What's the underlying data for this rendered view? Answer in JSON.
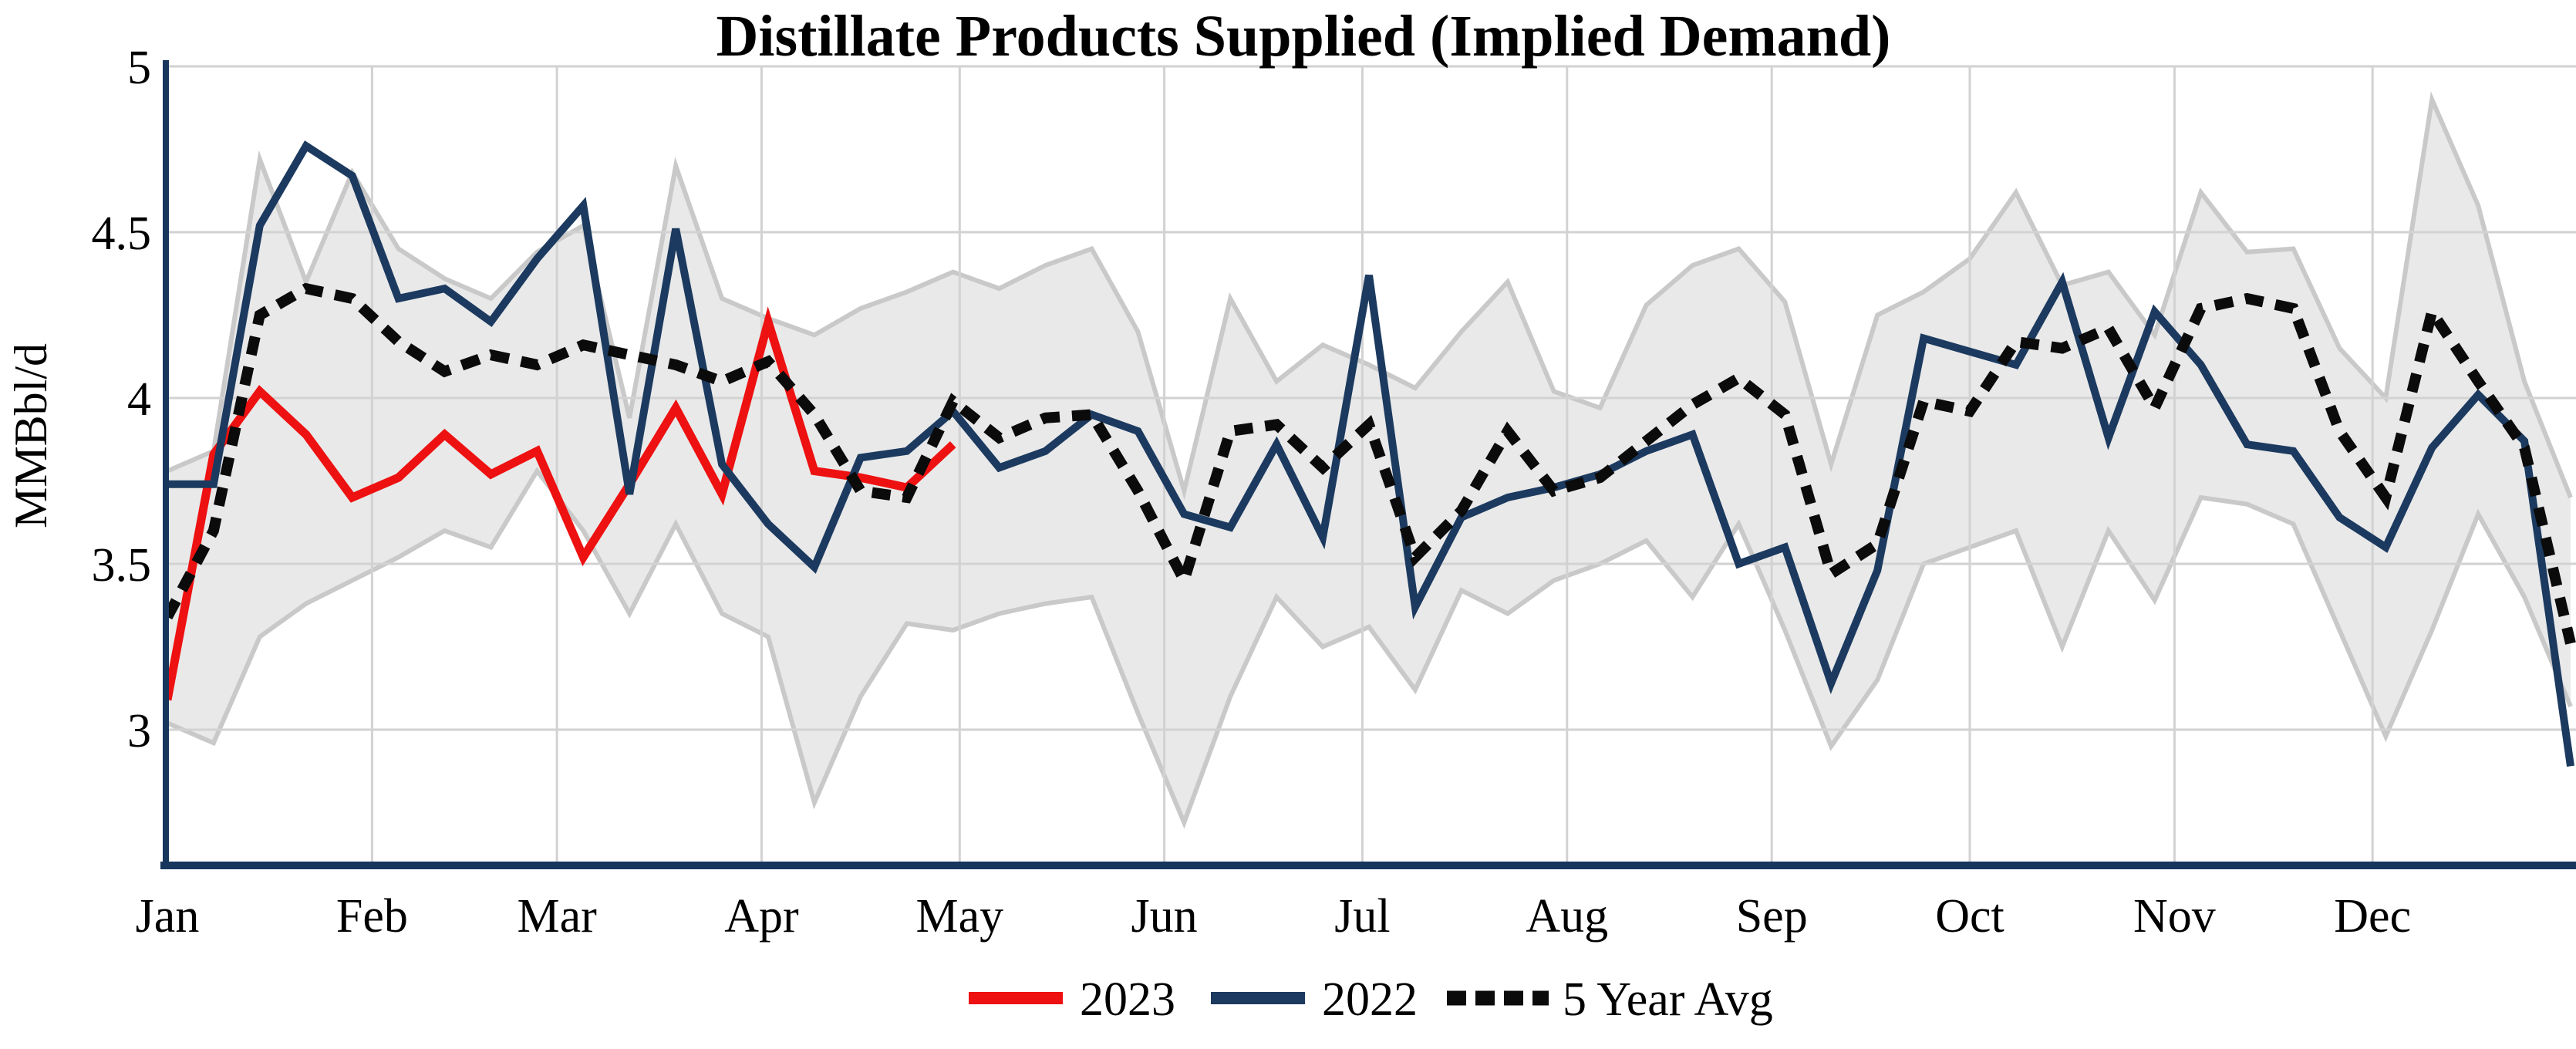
{
  "chart_data": {
    "type": "line",
    "title": "Distillate Products Supplied (Implied Demand)",
    "xlabel": "",
    "ylabel": "MMBbl/d",
    "x_tick_labels": [
      "Jan",
      "Feb",
      "Mar",
      "Apr",
      "May",
      "Jun",
      "Jul",
      "Aug",
      "Sep",
      "Oct",
      "Nov",
      "Dec"
    ],
    "month_start_days": [
      0,
      31,
      59,
      90,
      120,
      151,
      181,
      212,
      243,
      273,
      304,
      334
    ],
    "y_tick_labels": [
      "5",
      "4.5",
      "4",
      "3.5",
      "3"
    ],
    "y_tick_values": [
      5,
      4.5,
      4,
      3.5,
      3
    ],
    "ylim": [
      2.59,
      5.03
    ],
    "x_unit": "week",
    "weeks_per_year": 53,
    "grid": true,
    "legend_position": "bottom-center",
    "colors": {
      "axis": "#17365d",
      "grid": "#d2d2d2",
      "band_fill": "#e9e9e9",
      "band_edge": "#c9c9c9",
      "red_2023": "#ee1111",
      "navy_2022": "#1c3a5f",
      "avg_dotted": "#0b0b0b",
      "background": "#ffffff"
    },
    "legend": [
      {
        "label": "2023",
        "color": "#ee1111",
        "style": "solid"
      },
      {
        "label": "2022",
        "color": "#1c3a5f",
        "style": "solid"
      },
      {
        "label": "5 Year Avg",
        "color": "#0b0b0b",
        "style": "dotted"
      }
    ],
    "series": [
      {
        "name": "2023",
        "kind": "line",
        "style": "solid",
        "color": "#ee1111",
        "start_week": 1,
        "values": [
          3.09,
          3.83,
          4.02,
          3.89,
          3.7,
          3.76,
          3.89,
          3.77,
          3.84,
          3.52,
          3.74,
          3.97,
          3.71,
          4.23,
          3.78,
          3.76,
          3.73,
          3.86
        ]
      },
      {
        "name": "2022",
        "kind": "line",
        "style": "solid",
        "color": "#1c3a5f",
        "start_week": 1,
        "values": [
          3.74,
          3.74,
          4.52,
          4.76,
          4.67,
          4.3,
          4.33,
          4.23,
          4.42,
          4.58,
          3.71,
          4.51,
          3.8,
          3.62,
          3.49,
          3.82,
          3.84,
          3.96,
          3.79,
          3.84,
          3.95,
          3.9,
          3.65,
          3.61,
          3.86,
          3.58,
          4.37,
          3.37,
          3.64,
          3.7,
          3.73,
          3.77,
          3.84,
          3.89,
          3.5,
          3.55,
          3.14,
          3.48,
          4.18,
          4.14,
          4.1,
          4.35,
          3.88,
          4.26,
          4.1,
          3.86,
          3.84,
          3.64,
          3.55,
          3.85,
          4.01,
          3.87,
          2.89
        ]
      },
      {
        "name": "5 Year Avg",
        "kind": "line",
        "style": "dotted",
        "color": "#0b0b0b",
        "start_week": 1,
        "values": [
          3.34,
          3.6,
          4.25,
          4.33,
          4.3,
          4.17,
          4.08,
          4.13,
          4.1,
          4.16,
          4.13,
          4.1,
          4.05,
          4.11,
          3.95,
          3.72,
          3.7,
          3.99,
          3.88,
          3.94,
          3.95,
          3.72,
          3.45,
          3.9,
          3.92,
          3.79,
          3.92,
          3.52,
          3.66,
          3.9,
          3.72,
          3.76,
          3.87,
          3.98,
          4.06,
          3.95,
          3.47,
          3.56,
          3.99,
          3.96,
          4.17,
          4.15,
          4.21,
          3.97,
          4.27,
          4.3,
          4.27,
          3.9,
          3.7,
          4.26,
          4.05,
          3.85,
          3.26
        ]
      },
      {
        "name": "5 Year Range",
        "kind": "band",
        "fill": "#e9e9e9",
        "edge": "#c9c9c9",
        "start_week": 1,
        "hi": [
          3.78,
          3.84,
          4.72,
          4.35,
          4.68,
          4.45,
          4.36,
          4.3,
          4.44,
          4.52,
          3.94,
          4.7,
          4.3,
          4.24,
          4.19,
          4.27,
          4.32,
          4.38,
          4.33,
          4.4,
          4.45,
          4.2,
          3.72,
          4.3,
          4.05,
          4.16,
          4.1,
          4.03,
          4.2,
          4.35,
          4.02,
          3.97,
          4.28,
          4.4,
          4.45,
          4.29,
          3.8,
          4.25,
          4.32,
          4.42,
          4.62,
          4.34,
          4.38,
          4.19,
          4.62,
          4.44,
          4.45,
          4.15,
          4.0,
          4.9,
          4.58,
          4.05,
          3.7
        ],
        "lo": [
          3.02,
          2.96,
          3.28,
          3.38,
          3.45,
          3.52,
          3.6,
          3.55,
          3.78,
          3.6,
          3.35,
          3.62,
          3.35,
          3.28,
          2.78,
          3.1,
          3.32,
          3.3,
          3.35,
          3.38,
          3.4,
          3.05,
          2.72,
          3.1,
          3.4,
          3.25,
          3.31,
          3.12,
          3.42,
          3.35,
          3.45,
          3.5,
          3.57,
          3.4,
          3.62,
          3.3,
          2.95,
          3.15,
          3.5,
          3.55,
          3.6,
          3.25,
          3.6,
          3.39,
          3.7,
          3.68,
          3.62,
          3.3,
          2.98,
          3.3,
          3.65,
          3.4,
          3.07
        ]
      }
    ]
  }
}
